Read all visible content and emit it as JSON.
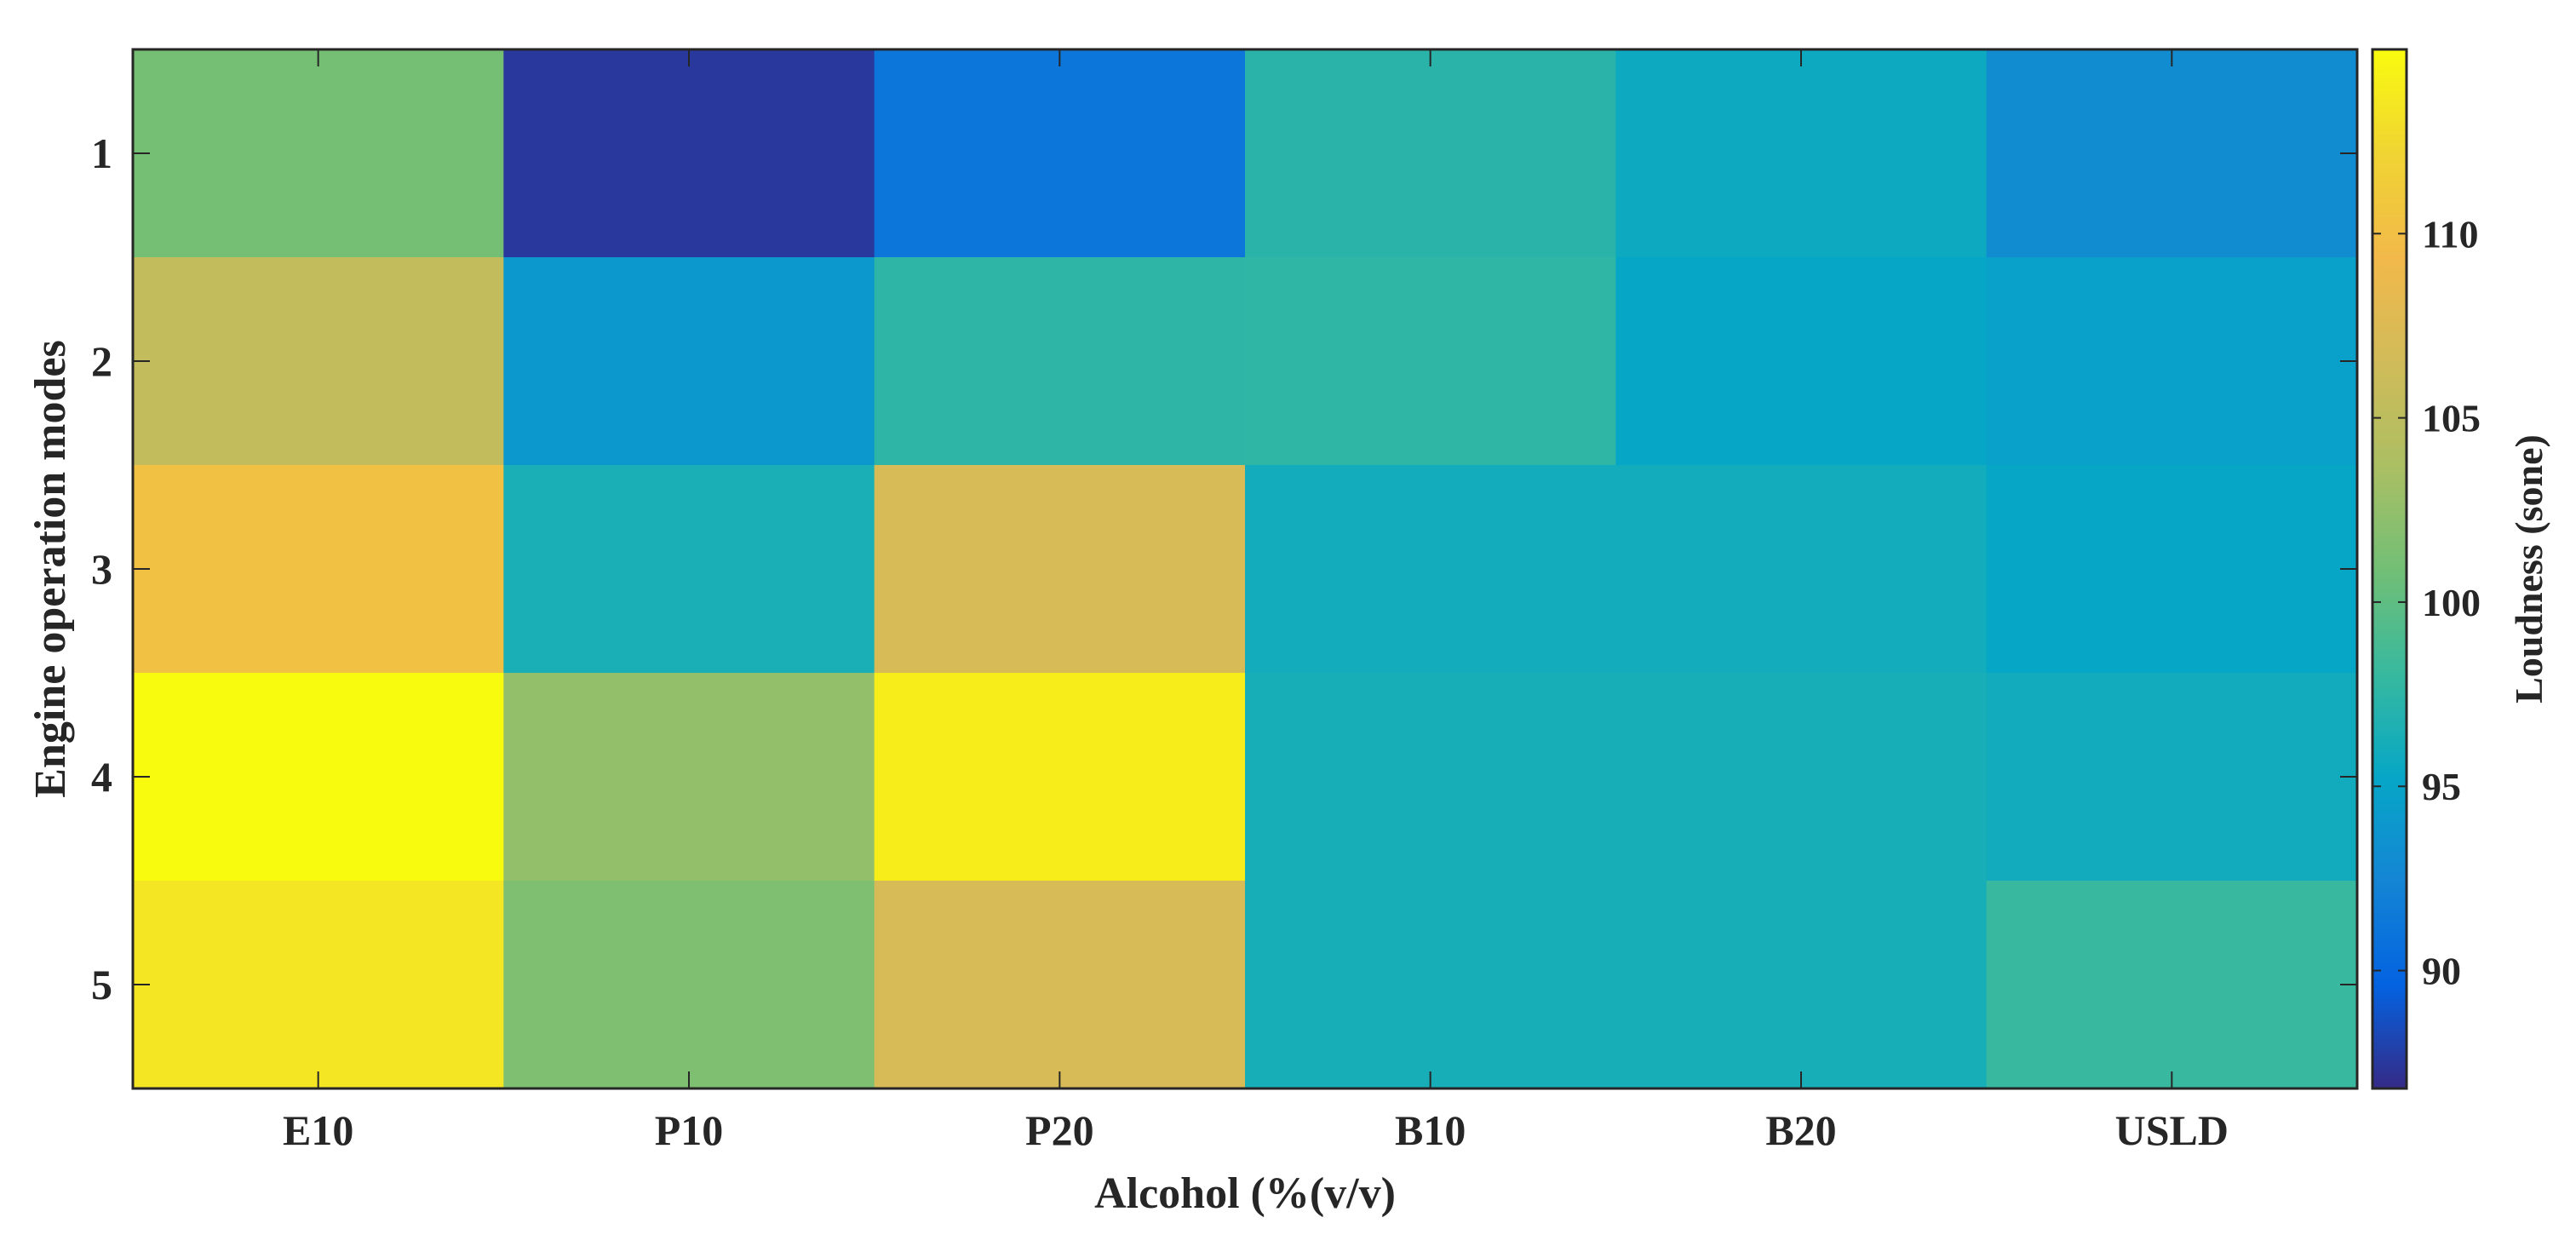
{
  "chart_data": {
    "type": "heatmap",
    "title": "",
    "xlabel": "Alcohol (%(v/v)",
    "ylabel": "Engine operation modes",
    "x_categories": [
      "E10",
      "P10",
      "P20",
      "B10",
      "B20",
      "USLD"
    ],
    "y_categories": [
      "1",
      "2",
      "3",
      "4",
      "5"
    ],
    "values": [
      [
        101.0,
        87.5,
        91.2,
        97.3,
        95.6,
        93.0
      ],
      [
        105.5,
        94.0,
        97.5,
        97.6,
        95.2,
        94.7
      ],
      [
        110.2,
        96.4,
        107.0,
        96.0,
        96.0,
        95.2
      ],
      [
        115.0,
        102.5,
        114.0,
        96.3,
        96.3,
        95.9
      ],
      [
        113.5,
        101.5,
        107.0,
        96.3,
        96.3,
        98.0
      ]
    ],
    "colorbar": {
      "label": "Loudness (sone)",
      "min": 86.8,
      "max": 115.0,
      "ticks": [
        "90",
        "95",
        "100",
        "105",
        "110"
      ],
      "colormap": "parula"
    },
    "grid": false
  }
}
